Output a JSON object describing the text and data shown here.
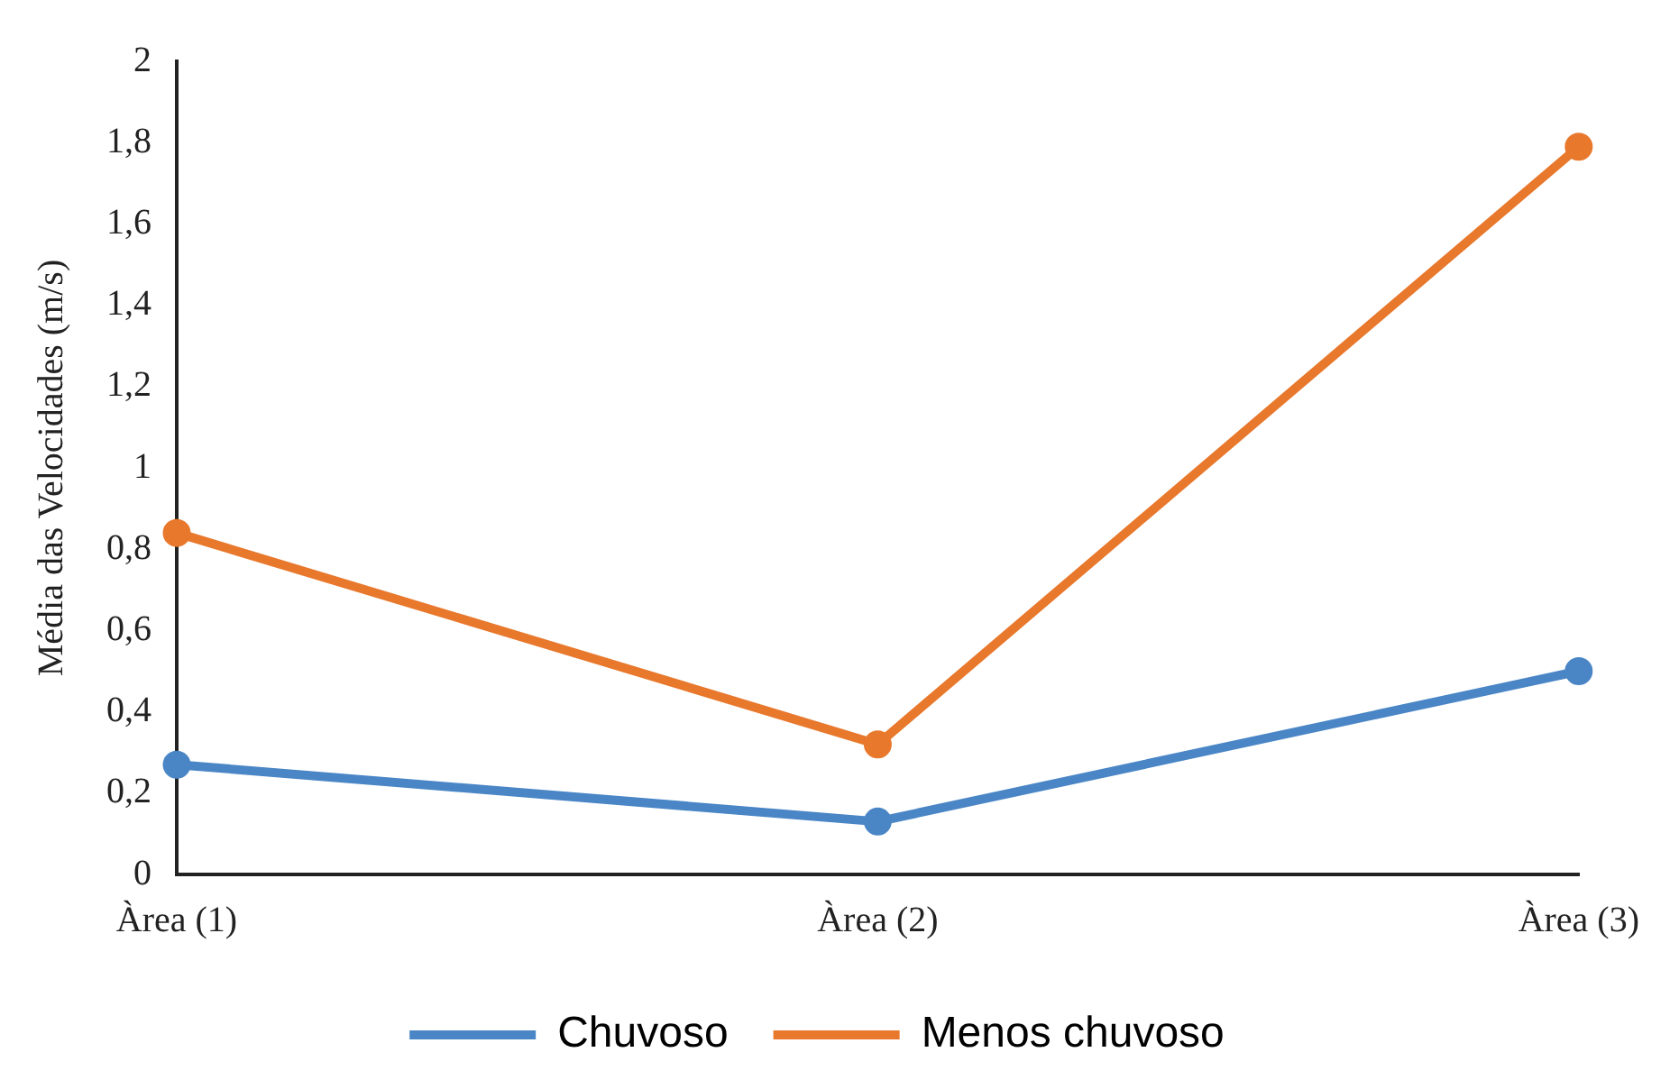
{
  "chart_data": {
    "type": "line",
    "ylabel": "Média das Velocidades (m/s)",
    "categories": [
      "Àrea (1)",
      "Àrea (2)",
      "Àrea (3)"
    ],
    "series": [
      {
        "name": "Chuvoso",
        "color": "#4a86c6",
        "values": [
          0.27,
          0.13,
          0.5
        ]
      },
      {
        "name": "Menos chuvoso",
        "color": "#e8782c",
        "values": [
          0.84,
          0.32,
          1.79
        ]
      }
    ],
    "ylim": [
      0,
      2
    ],
    "yticks": [
      0,
      {
        "value": 0.2,
        "label": "0,2"
      },
      {
        "value": 0.4,
        "label": "0,4"
      },
      {
        "value": 0.6,
        "label": "0,6"
      },
      {
        "value": 0.8,
        "label": "0,8"
      },
      1,
      {
        "value": 1.2,
        "label": "1,2"
      },
      {
        "value": 1.4,
        "label": "1,4"
      },
      {
        "value": 1.6,
        "label": "1,6"
      },
      {
        "value": 1.8,
        "label": "1,8"
      },
      2
    ],
    "grid": false,
    "legend": "bottom",
    "marker": "circle",
    "line_style": "solid"
  }
}
